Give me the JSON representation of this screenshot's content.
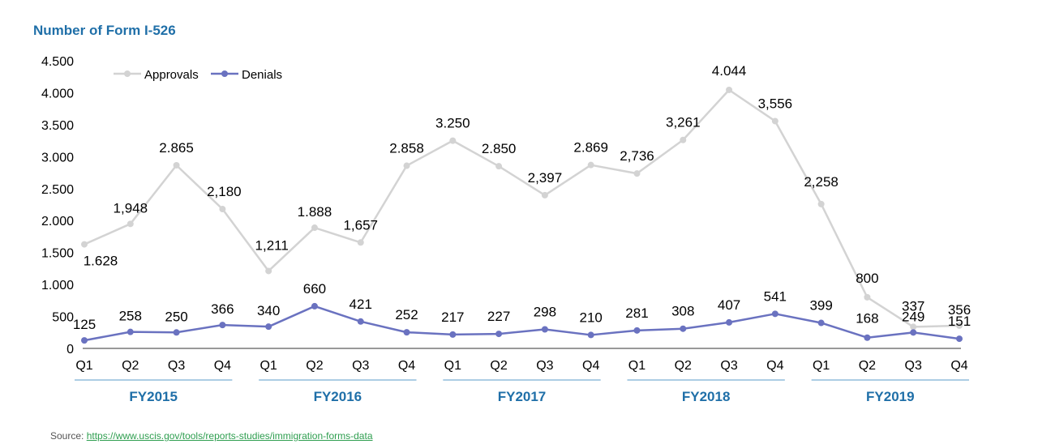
{
  "chart_data": {
    "type": "line",
    "title": "Number of Form I-526",
    "categories": [
      "Q1",
      "Q2",
      "Q3",
      "Q4",
      "Q1",
      "Q2",
      "Q3",
      "Q4",
      "Q1",
      "Q2",
      "Q3",
      "Q4",
      "Q1",
      "Q2",
      "Q3",
      "Q4",
      "Q1",
      "Q2",
      "Q3",
      "Q4"
    ],
    "groups": [
      {
        "label": "FY2015",
        "count": 4
      },
      {
        "label": "FY2016",
        "count": 4
      },
      {
        "label": "FY2017",
        "count": 4
      },
      {
        "label": "FY2018",
        "count": 4
      },
      {
        "label": "FY2019",
        "count": 4
      }
    ],
    "ylim": [
      0,
      4500
    ],
    "yticks": [
      0,
      500,
      1000,
      1500,
      2000,
      2500,
      3000,
      3500,
      4000,
      4500
    ],
    "ytick_labels": [
      "0",
      "500",
      "1.000",
      "1.500",
      "2.000",
      "2.500",
      "3.000",
      "3.500",
      "4.000",
      "4.500"
    ],
    "legend_position": "top-left",
    "grid": false,
    "series": [
      {
        "name": "Approvals",
        "color": "#d3d3d3",
        "values": [
          1628,
          1948,
          2865,
          2180,
          1211,
          1888,
          1657,
          2858,
          3250,
          2850,
          2397,
          2869,
          2736,
          3261,
          4044,
          3556,
          2258,
          800,
          337,
          356
        ],
        "labels": [
          "1.628",
          "1,948",
          "2.865",
          "2,180",
          "1,211",
          "1.888",
          "1,657",
          "2.858",
          "3.250",
          "2.850",
          "2,397",
          "2.869",
          "2,736",
          "3,261",
          "4.044",
          "3,556",
          "2,258",
          "800",
          "337",
          "356"
        ]
      },
      {
        "name": "Denials",
        "color": "#6a72c0",
        "values": [
          125,
          258,
          250,
          366,
          340,
          660,
          421,
          252,
          217,
          227,
          298,
          210,
          281,
          308,
          407,
          541,
          399,
          168,
          249,
          151
        ],
        "labels": [
          "125",
          "258",
          "250",
          "366",
          "340",
          "660",
          "421",
          "252",
          "217",
          "227",
          "298",
          "210",
          "281",
          "308",
          "407",
          "541",
          "399",
          "168",
          "249",
          "151"
        ]
      }
    ]
  },
  "source": {
    "prefix": "Source: ",
    "link_text": "https://www.uscis.gov/tools/reports-studies/immigration-forms-data"
  },
  "colors": {
    "title": "#1f6fa8",
    "group_label": "#1f6fa8",
    "group_rule": "#5a9bc9",
    "link": "#2e9e4f"
  }
}
